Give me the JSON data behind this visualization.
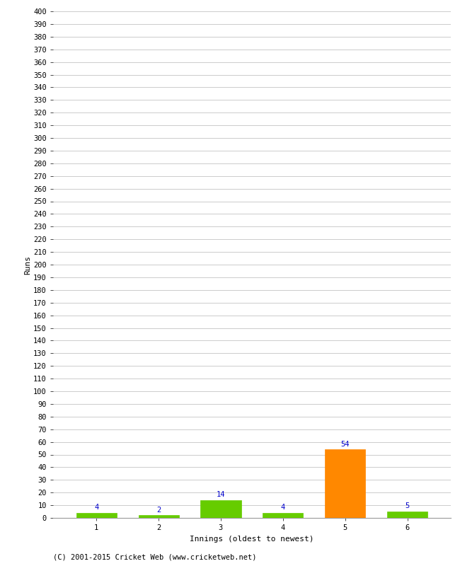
{
  "innings": [
    "1",
    "2",
    "3",
    "4",
    "5",
    "6"
  ],
  "values": [
    4,
    2,
    14,
    4,
    54,
    5
  ],
  "bar_colors": [
    "#66cc00",
    "#66cc00",
    "#66cc00",
    "#66cc00",
    "#ff8800",
    "#66cc00"
  ],
  "ylim": [
    0,
    400
  ],
  "yticks": [
    0,
    10,
    20,
    30,
    40,
    50,
    60,
    70,
    80,
    90,
    100,
    110,
    120,
    130,
    140,
    150,
    160,
    170,
    180,
    190,
    200,
    210,
    220,
    230,
    240,
    250,
    260,
    270,
    280,
    290,
    300,
    310,
    320,
    330,
    340,
    350,
    360,
    370,
    380,
    390,
    400
  ],
  "ylabel": "Runs",
  "xlabel": "Innings (oldest to newest)",
  "annotation_color": "#0000cc",
  "annotation_fontsize": 7.5,
  "axis_label_fontsize": 8,
  "tick_fontsize": 7.5,
  "footer_text": "(C) 2001-2015 Cricket Web (www.cricketweb.net)",
  "footer_fontsize": 7.5,
  "background_color": "#ffffff",
  "grid_color": "#cccccc",
  "bar_width": 0.65
}
